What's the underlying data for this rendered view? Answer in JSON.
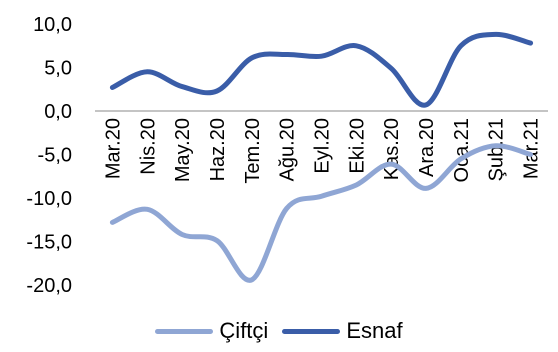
{
  "chart_data": {
    "type": "line",
    "categories": [
      "Mar.20",
      "Nis.20",
      "May.20",
      "Haz.20",
      "Tem.20",
      "Ağu.20",
      "Eyl.20",
      "Eki.20",
      "Kas.20",
      "Ara.20",
      "Oca.21",
      "Şub.21",
      "Mar.21"
    ],
    "series": [
      {
        "name": "Çiftçi",
        "color": "#8fa6d4",
        "values": [
          -12.8,
          -11.3,
          -14.2,
          -14.9,
          -19.4,
          -11.2,
          -9.8,
          -8.5,
          -6.1,
          -8.9,
          -5.5,
          -4.0,
          -5.0
        ]
      },
      {
        "name": "Esnaf",
        "color": "#3a5da8",
        "values": [
          2.7,
          4.5,
          2.8,
          2.3,
          6.1,
          6.5,
          6.3,
          7.5,
          4.9,
          0.7,
          7.5,
          8.8,
          7.8
        ]
      }
    ],
    "ylim": [
      -20,
      10
    ],
    "yticks": [
      "10,0",
      "5,0",
      "0,0",
      "-5,0",
      "-10,0",
      "-15,0",
      "-20,0"
    ],
    "title": "",
    "xlabel": "",
    "ylabel": "",
    "grid": false,
    "legend": "bottom"
  }
}
